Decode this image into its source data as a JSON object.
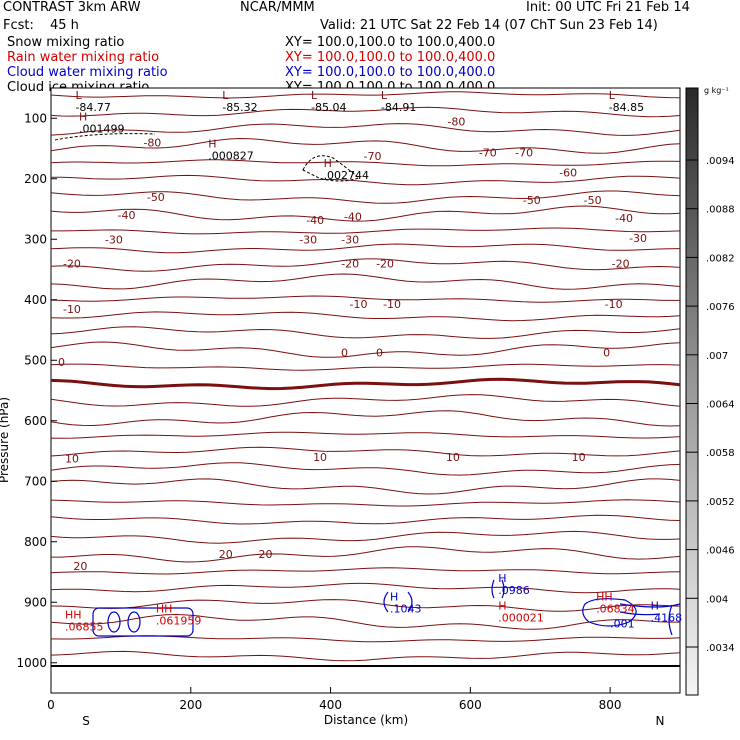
{
  "header": {
    "model": "CONTRAST  3km ARW",
    "org": "NCAR/MMM",
    "init": "Init: 00 UTC Fri 21 Feb 14",
    "fcst_label": "Fcst:",
    "fcst_value": "45 h",
    "valid": "Valid: 21 UTC Sat 22 Feb 14 (07 ChT Sun 23 Feb 14)",
    "fields": [
      {
        "name": "Snow mixing ratio",
        "xy": "XY= 100.0,100.0 to 100.0,400.0",
        "color": "#000000"
      },
      {
        "name": "Rain water mixing ratio",
        "xy": "XY= 100.0,100.0 to 100.0,400.0",
        "color": "#d40000"
      },
      {
        "name": "Cloud water mixing ratio",
        "xy": "XY= 100.0,100.0 to 100.0,400.0",
        "color": "#0000c8"
      },
      {
        "name": "Cloud ice mixing ratio",
        "xy": "XY= 100.0,100.0 to 100.0,400.0",
        "color": "#000000"
      }
    ]
  },
  "colorbar": {
    "unit_label": "g kg⁻¹",
    "ticks": [
      ".0094",
      ".0088",
      ".0082",
      ".0076",
      ".007",
      ".0064",
      ".0058",
      ".0052",
      ".0046",
      ".004",
      ".0034"
    ]
  },
  "chart_data": {
    "type": "contour-cross-section",
    "xlabel": "Distance (km)",
    "ylabel": "Pressure (hPa)",
    "xlim": [
      0,
      900
    ],
    "ylim": [
      1050,
      50
    ],
    "x_ticks": [
      0,
      200,
      400,
      600,
      800
    ],
    "y_ticks": [
      100,
      200,
      300,
      400,
      500,
      600,
      700,
      800,
      900,
      1000
    ],
    "endpoints": {
      "left": "S",
      "right": "N"
    },
    "temperature_contour_labels": [
      {
        "value": "-80",
        "x": 580,
        "p": 105
      },
      {
        "value": "-80",
        "x": 145,
        "p": 140
      },
      {
        "value": "-70",
        "x": 460,
        "p": 162
      },
      {
        "value": "-70",
        "x": 625,
        "p": 157
      },
      {
        "value": "-70",
        "x": 677,
        "p": 157
      },
      {
        "value": "-60",
        "x": 740,
        "p": 190
      },
      {
        "value": "-50",
        "x": 150,
        "p": 230
      },
      {
        "value": "-50",
        "x": 688,
        "p": 235
      },
      {
        "value": "-50",
        "x": 775,
        "p": 235
      },
      {
        "value": "-40",
        "x": 108,
        "p": 260
      },
      {
        "value": "-40",
        "x": 378,
        "p": 268
      },
      {
        "value": "-40",
        "x": 432,
        "p": 262
      },
      {
        "value": "-40",
        "x": 820,
        "p": 265
      },
      {
        "value": "-30",
        "x": 90,
        "p": 300
      },
      {
        "value": "-30",
        "x": 368,
        "p": 300
      },
      {
        "value": "-30",
        "x": 428,
        "p": 300
      },
      {
        "value": "-30",
        "x": 840,
        "p": 298
      },
      {
        "value": "-20",
        "x": 30,
        "p": 340
      },
      {
        "value": "-20",
        "x": 428,
        "p": 340
      },
      {
        "value": "-20",
        "x": 478,
        "p": 340
      },
      {
        "value": "-20",
        "x": 815,
        "p": 340
      },
      {
        "value": "-10",
        "x": 30,
        "p": 415
      },
      {
        "value": "-10",
        "x": 440,
        "p": 407
      },
      {
        "value": "-10",
        "x": 488,
        "p": 407
      },
      {
        "value": "-10",
        "x": 805,
        "p": 407
      },
      {
        "value": "0",
        "x": 15,
        "p": 503
      },
      {
        "value": "0",
        "x": 420,
        "p": 487
      },
      {
        "value": "0",
        "x": 470,
        "p": 487
      },
      {
        "value": "0",
        "x": 795,
        "p": 487
      },
      {
        "value": "10",
        "x": 30,
        "p": 662
      },
      {
        "value": "10",
        "x": 385,
        "p": 660
      },
      {
        "value": "10",
        "x": 575,
        "p": 660
      },
      {
        "value": "10",
        "x": 755,
        "p": 660
      },
      {
        "value": "20",
        "x": 42,
        "p": 840
      },
      {
        "value": "20",
        "x": 250,
        "p": 820
      },
      {
        "value": "20",
        "x": 307,
        "p": 820
      }
    ],
    "extrema_labels": [
      {
        "marker": "L",
        "value": "-84.77",
        "x": 35,
        "p": 85
      },
      {
        "marker": "L",
        "value": "-85.32",
        "x": 245,
        "p": 85
      },
      {
        "marker": "L",
        "value": "-85.04",
        "x": 372,
        "p": 85
      },
      {
        "marker": "L",
        "value": "-84.91",
        "x": 472,
        "p": 85
      },
      {
        "marker": "L",
        "value": "-84.85",
        "x": 798,
        "p": 85
      },
      {
        "marker": "H",
        "value": ".001499",
        "x": 40,
        "p": 120
      },
      {
        "marker": "H",
        "value": ".000827",
        "x": 225,
        "p": 165
      },
      {
        "marker": "H",
        "value": ".002744",
        "x": 390,
        "p": 197
      }
    ],
    "rain_labels": [
      {
        "marker": "HH",
        "value": ".06855",
        "x": 20,
        "p": 940
      },
      {
        "marker": "HH",
        "value": ".061959",
        "x": 150,
        "p": 930
      },
      {
        "marker": "H",
        "value": ".000021",
        "x": 640,
        "p": 925
      },
      {
        "marker": "HH",
        "value": ".06834",
        "x": 780,
        "p": 910
      }
    ],
    "cloud_water_labels": [
      {
        "marker": "H",
        "value": ".1043",
        "x": 485,
        "p": 910
      },
      {
        "marker": "H",
        "value": ".0986",
        "x": 640,
        "p": 880
      },
      {
        "marker": "",
        "value": ".001",
        "x": 800,
        "p": 935
      },
      {
        "marker": "H",
        "value": ".4168",
        "x": 858,
        "p": 925
      }
    ]
  }
}
